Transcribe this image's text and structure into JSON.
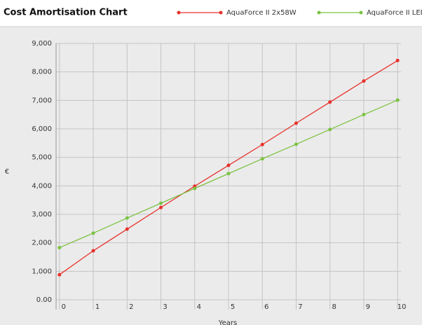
{
  "chart_data": {
    "type": "line",
    "title": "Cost Amortisation Chart",
    "x_label": "Years",
    "y_label": "€",
    "x": [
      0,
      1,
      2,
      3,
      4,
      5,
      6,
      7,
      8,
      9,
      10
    ],
    "series": [
      {
        "name": "AquaForce II 2x58W",
        "color": "#e8302a",
        "values": [
          880,
          1720,
          2480,
          3240,
          3990,
          4720,
          5450,
          6200,
          6940,
          7680,
          8400
        ]
      },
      {
        "name": "AquaForce II LED",
        "color": "#7cc242",
        "values": [
          1830,
          2340,
          2870,
          3390,
          3910,
          4430,
          4950,
          5460,
          5980,
          6500,
          7010
        ]
      }
    ],
    "xlim": [
      -0.1,
      10.1
    ],
    "xticks": [
      0,
      1,
      2,
      3,
      4,
      5,
      6,
      7,
      8,
      9,
      10
    ],
    "ylim": [
      0,
      9000
    ],
    "yticks": [
      {
        "value": 0,
        "label": "0.00"
      },
      {
        "value": 1000,
        "label": "1,000"
      },
      {
        "value": 2000,
        "label": "2,000"
      },
      {
        "value": 3000,
        "label": "3,000"
      },
      {
        "value": 4000,
        "label": "4,000"
      },
      {
        "value": 5000,
        "label": "5,000"
      },
      {
        "value": 6000,
        "label": "6,000"
      },
      {
        "value": 7000,
        "label": "7,000"
      },
      {
        "value": 8000,
        "label": "8,000"
      },
      {
        "value": 9000,
        "label": "9,000"
      }
    ],
    "grid": true
  }
}
